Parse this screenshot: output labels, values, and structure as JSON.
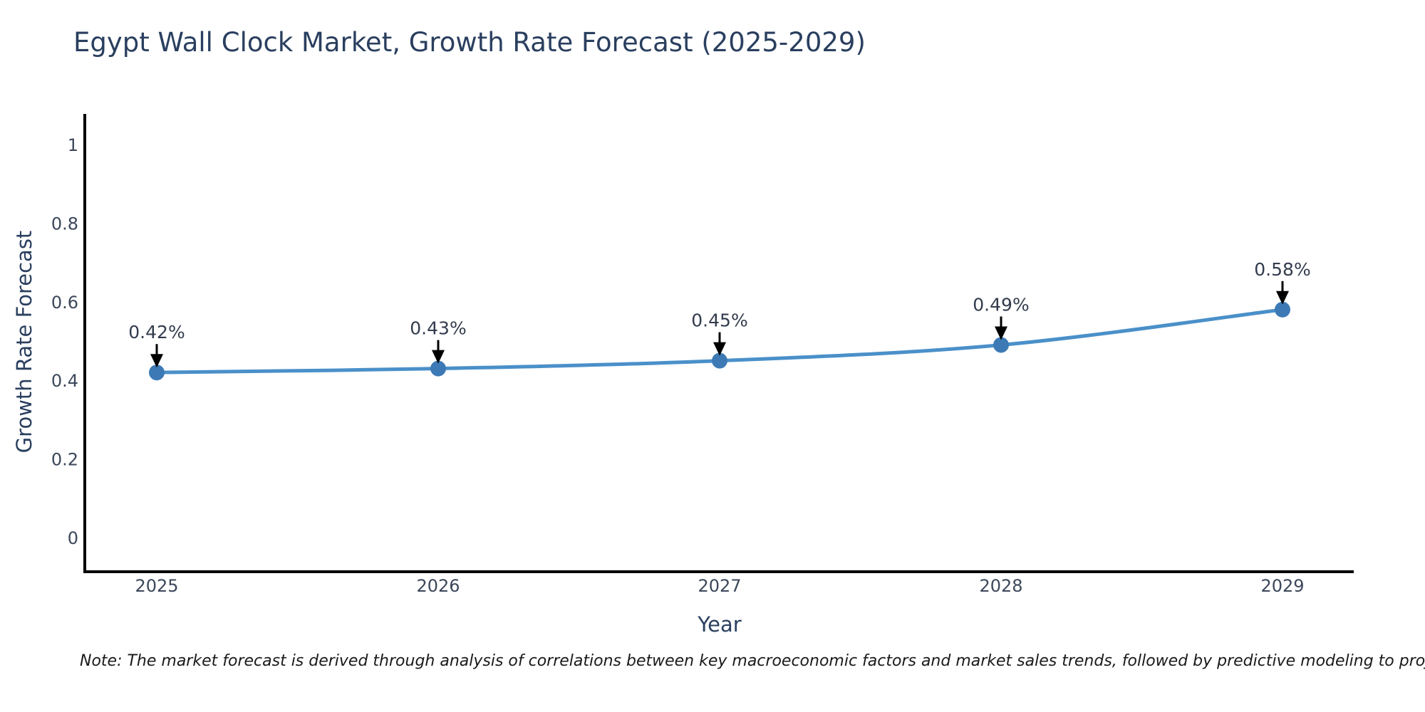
{
  "title": "Egypt Wall Clock Market, Growth Rate Forecast (2025-2029)",
  "note": "Note: The market forecast is derived through analysis of correlations between key macroeconomic factors and market sales trends, followed by predictive modeling to project future sales",
  "chart_data": {
    "type": "line",
    "title": "Egypt Wall Clock Market, Growth Rate Forecast (2025-2029)",
    "xlabel": "Year",
    "ylabel": "Growth Rate Forecast",
    "categories": [
      "2025",
      "2026",
      "2027",
      "2028",
      "2029"
    ],
    "values": [
      0.42,
      0.43,
      0.45,
      0.49,
      0.58
    ],
    "point_labels": [
      "0.42%",
      "0.43%",
      "0.45%",
      "0.49%",
      "0.58%"
    ],
    "yticks": [
      0,
      0.2,
      0.4,
      0.6,
      0.8,
      1
    ],
    "ytick_labels": [
      "0",
      "0.2",
      "0.4",
      "0.6",
      "0.8",
      "1"
    ],
    "ylim": [
      -0.09,
      1.08
    ],
    "grid": false,
    "legend": "none",
    "marker": "circle",
    "line_style": "smooth",
    "annotations": "value label with downward black arrow above each point",
    "colors": {
      "line": "#4a90c9",
      "marker": "#3d7ab5",
      "arrow": "#000000",
      "axis": "#000000",
      "title_text": "#2a3f5f",
      "tick_text": "#3c475a",
      "note_text": "#1a1a1a",
      "background": "#ffffff"
    }
  }
}
